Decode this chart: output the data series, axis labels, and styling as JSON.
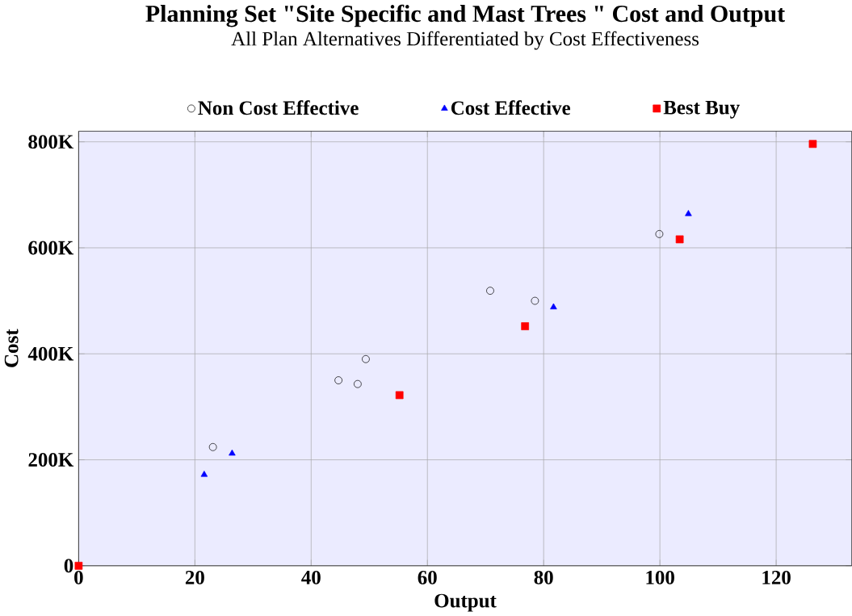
{
  "chart_data": {
    "type": "scatter",
    "title": "Planning Set \"Site Specific and Mast Trees \" Cost and Output",
    "subtitle": "All Plan Alternatives Differentiated by Cost Effectiveness",
    "xlabel": "Output",
    "ylabel": "Cost",
    "series": [
      {
        "name": "Non Cost Effective",
        "color": "#000000",
        "marker": "circle",
        "x": [
          23.1,
          44.7,
          48.0,
          49.4,
          70.8,
          78.5,
          99.9
        ],
        "values": [
          224,
          350,
          343,
          390,
          519,
          500,
          626
        ]
      },
      {
        "name": "Cost Effective",
        "color": "#0000ff",
        "marker": "triangle",
        "x": [
          21.6,
          26.4,
          81.7,
          104.9
        ],
        "values": [
          172,
          212,
          488,
          664
        ]
      },
      {
        "name": "Best Buy",
        "color": "#ff0000",
        "marker": "square",
        "x": [
          0,
          55.2,
          76.8,
          103.4,
          126.3
        ],
        "values": [
          0,
          322,
          452,
          616,
          796
        ]
      }
    ],
    "xlim": [
      0,
      133
    ],
    "ylim": [
      0,
      820
    ],
    "xticks": [
      0,
      20,
      40,
      60,
      80,
      100,
      120
    ],
    "yticks": [
      {
        "value": 0,
        "label": "0"
      },
      {
        "value": 200,
        "label": "200K"
      },
      {
        "value": 400,
        "label": "400K"
      },
      {
        "value": 600,
        "label": "600K"
      },
      {
        "value": 800,
        "label": "800K"
      }
    ],
    "grid": true,
    "legend": "top"
  }
}
